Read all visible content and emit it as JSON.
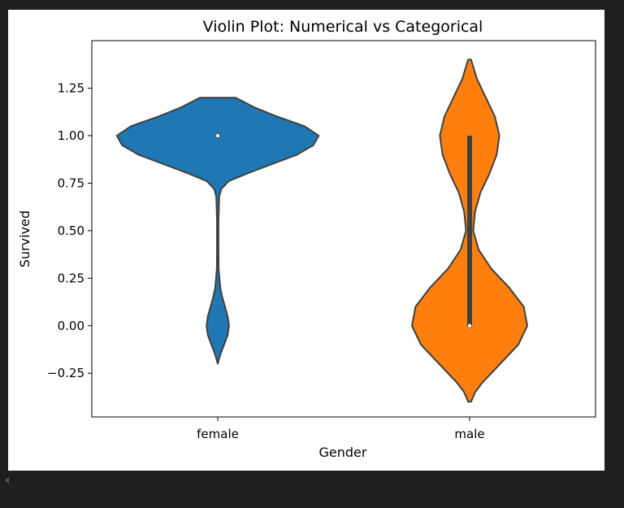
{
  "chart_data": {
    "type": "violin",
    "title": "Violin Plot: Numerical vs Categorical",
    "xlabel": "Gender",
    "ylabel": "Survived",
    "categories": [
      "female",
      "male"
    ],
    "ylim": [
      -0.48,
      1.5
    ],
    "yticks": [
      -0.25,
      0.0,
      0.25,
      0.5,
      0.75,
      1.0,
      1.25
    ],
    "ytick_labels": [
      "−0.25",
      "0.00",
      "0.25",
      "0.50",
      "0.75",
      "1.00",
      "1.25"
    ],
    "grid": false,
    "violins": [
      {
        "category": "female",
        "color": "#1f77b4",
        "median": 1.0,
        "q1": 1.0,
        "q3": 1.0,
        "range": [
          -0.2,
          1.2
        ],
        "density": [
          [
            -0.2,
            0.0
          ],
          [
            -0.15,
            0.015
          ],
          [
            -0.1,
            0.035
          ],
          [
            -0.05,
            0.055
          ],
          [
            0.0,
            0.062
          ],
          [
            0.05,
            0.055
          ],
          [
            0.1,
            0.04
          ],
          [
            0.15,
            0.025
          ],
          [
            0.2,
            0.014
          ],
          [
            0.3,
            0.005
          ],
          [
            0.4,
            0.004
          ],
          [
            0.55,
            0.004
          ],
          [
            0.68,
            0.008
          ],
          [
            0.72,
            0.02
          ],
          [
            0.76,
            0.06
          ],
          [
            0.8,
            0.16
          ],
          [
            0.85,
            0.3
          ],
          [
            0.9,
            0.44
          ],
          [
            0.95,
            0.53
          ],
          [
            1.0,
            0.56
          ],
          [
            1.05,
            0.48
          ],
          [
            1.1,
            0.33
          ],
          [
            1.15,
            0.2
          ],
          [
            1.2,
            0.1
          ]
        ]
      },
      {
        "category": "male",
        "color": "#ff7f0e",
        "median": 0.0,
        "q1": 0.0,
        "q3": 1.0,
        "range": [
          -0.4,
          1.4
        ],
        "density": [
          [
            -0.4,
            0.008
          ],
          [
            -0.35,
            0.03
          ],
          [
            -0.3,
            0.07
          ],
          [
            -0.2,
            0.17
          ],
          [
            -0.1,
            0.27
          ],
          [
            0.0,
            0.32
          ],
          [
            0.1,
            0.3
          ],
          [
            0.2,
            0.22
          ],
          [
            0.3,
            0.12
          ],
          [
            0.4,
            0.05
          ],
          [
            0.5,
            0.02
          ],
          [
            0.6,
            0.03
          ],
          [
            0.7,
            0.06
          ],
          [
            0.8,
            0.11
          ],
          [
            0.9,
            0.15
          ],
          [
            1.0,
            0.165
          ],
          [
            1.1,
            0.14
          ],
          [
            1.2,
            0.09
          ],
          [
            1.3,
            0.04
          ],
          [
            1.4,
            0.008
          ]
        ]
      }
    ]
  }
}
